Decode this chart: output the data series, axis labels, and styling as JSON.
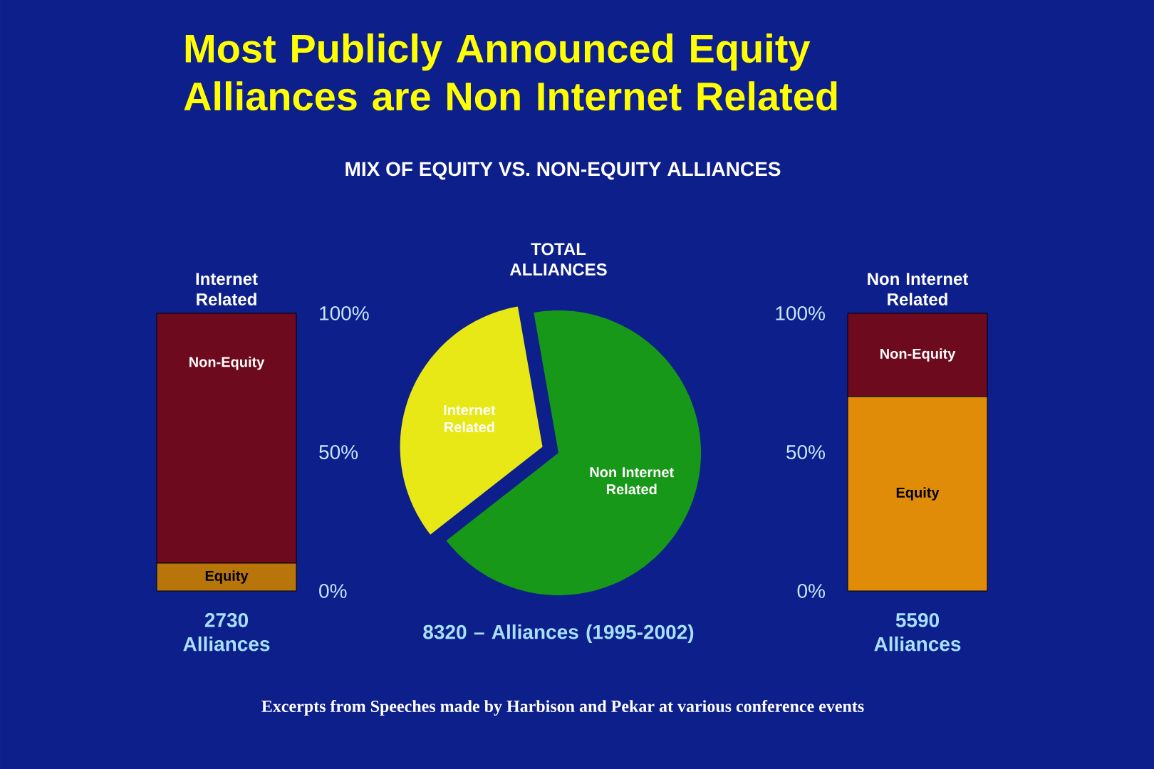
{
  "chart_data": [
    {
      "type": "bar",
      "stacked": true,
      "title": "Most Publicly Announced Equity Alliances are Non Internet Related",
      "categories": [
        "Internet Related"
      ],
      "xlabel": "2730 Alliances",
      "ylim": [
        0,
        100
      ],
      "yticks": [
        {
          "value": 0,
          "label": "0%"
        },
        {
          "value": 50,
          "label": "50%"
        },
        {
          "value": 100,
          "label": "100%"
        }
      ],
      "series": [
        {
          "name": "Equity",
          "color": "#b8760a",
          "values": [
            10
          ]
        },
        {
          "name": "Non-Equity",
          "color": "#6e0a1e",
          "values": [
            90
          ]
        }
      ]
    },
    {
      "type": "pie",
      "title": "TOTAL ALLIANCES",
      "subtitle": "MIX OF EQUITY VS. NON-EQUITY ALLIANCES",
      "xlabel": "8320 – Alliances (1995-2002)",
      "categories": [
        "Internet Related",
        "Non Internet Related"
      ],
      "values": [
        32.8,
        67.2
      ],
      "colors": [
        "#e8e817",
        "#189818"
      ],
      "annotations": [
        "Excerpts from Speeches made by Harbison and Pekar at various conference events"
      ]
    },
    {
      "type": "bar",
      "stacked": true,
      "categories": [
        "Non Internet Related"
      ],
      "xlabel": "5590 Alliances",
      "ylim": [
        0,
        100
      ],
      "yticks": [
        {
          "value": 0,
          "label": "0%"
        },
        {
          "value": 50,
          "label": "50%"
        },
        {
          "value": 100,
          "label": "100%"
        }
      ],
      "series": [
        {
          "name": "Equity",
          "color": "#e08c08",
          "values": [
            70
          ]
        },
        {
          "name": "Non-Equity",
          "color": "#6e0a1e",
          "values": [
            30
          ]
        }
      ]
    }
  ]
}
